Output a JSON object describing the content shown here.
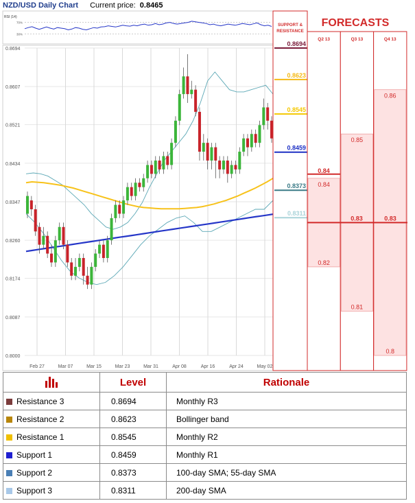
{
  "header": {
    "title": "NZD/USD Daily Chart",
    "price_label": "Current price:",
    "price_value": "0.8465"
  },
  "forecast_panel": {
    "support_resistance_label": [
      "SUPPORT &",
      "RESISTANCE"
    ],
    "title": "FORECASTS",
    "columns": [
      "Q2 13",
      "Q3 13",
      "Q4 13"
    ]
  },
  "colors": {
    "resistance_3": "#7b1c3a",
    "resistance_2": "#f5b915",
    "resistance_1": "#f5c800",
    "support_1": "#1c2fc4",
    "support_2": "#3a7a86",
    "support_3": "#a9d3d9",
    "sma100": "#f7c21a",
    "sma200": "#2536c8",
    "bollinger": "#5aa7b5",
    "bull": "#3cb53a",
    "bear": "#c8232a",
    "forecast_red": "#d22a2a",
    "forecast_fill": "#fde2e2"
  },
  "table": {
    "headers": {
      "icon": "bar-chart-icon",
      "level": "Level",
      "rationale": "Rationale"
    },
    "rows": [
      {
        "name": "Resistance 3",
        "level": "0.8694",
        "rationale": "Monthly R3",
        "color": "#7b3c3c"
      },
      {
        "name": "Resistance 2",
        "level": "0.8623",
        "rationale": "Bollinger band",
        "color": "#b8860b"
      },
      {
        "name": "Resistance 1",
        "level": "0.8545",
        "rationale": "Monthly R2",
        "color": "#f0c000"
      },
      {
        "name": "Support 1",
        "level": "0.8459",
        "rationale": "Monthly R1",
        "color": "#1f1fd0"
      },
      {
        "name": "Support 2",
        "level": "0.8373",
        "rationale": "100-day SMA; 55-day SMA",
        "color": "#4a7fb5"
      },
      {
        "name": "Support 3",
        "level": "0.8311",
        "rationale": "200-day SMA",
        "color": "#a8c8e8"
      }
    ]
  },
  "chart_data": {
    "type": "candlestick",
    "title": "NZD/USD Daily Chart",
    "ylim": [
      0.8,
      0.8694
    ],
    "y_ticks": [
      "0.8694",
      "0.8607",
      "0.8521",
      "0.8434",
      "0.8347",
      "0.8260",
      "0.8174",
      "0.8087",
      "0.8000"
    ],
    "x_ticks": [
      "Feb 27",
      "Mar 07",
      "Mar 15",
      "Mar 23",
      "Mar 31",
      "Apr 08",
      "Apr 16",
      "Apr 24",
      "May 02"
    ],
    "rsi": {
      "label": "RSI (14)",
      "levels": [
        "70%",
        "30%"
      ],
      "values": [
        48,
        52,
        55,
        50,
        46,
        50,
        54,
        50,
        47,
        52,
        50,
        48,
        44,
        47,
        52,
        50,
        46,
        44,
        48,
        52,
        50,
        54,
        55,
        58,
        56,
        54,
        57,
        60,
        58,
        57,
        60,
        58,
        62,
        64,
        60,
        62,
        66,
        62,
        64,
        68,
        70,
        66,
        64,
        66,
        68,
        70,
        74,
        72,
        70,
        68,
        66,
        62,
        64,
        60,
        58,
        61,
        64,
        62,
        60,
        63,
        66,
        64,
        62,
        65,
        68,
        62,
        58,
        60,
        56
      ]
    },
    "candles": [
      [
        0.832,
        0.836,
        0.831,
        0.837
      ],
      [
        0.835,
        0.833,
        0.8315,
        0.836
      ],
      [
        0.833,
        0.828,
        0.827,
        0.834
      ],
      [
        0.829,
        0.825,
        0.823,
        0.83
      ],
      [
        0.825,
        0.827,
        0.824,
        0.829
      ],
      [
        0.827,
        0.823,
        0.822,
        0.828
      ],
      [
        0.823,
        0.821,
        0.82,
        0.825
      ],
      [
        0.821,
        0.826,
        0.82,
        0.827
      ],
      [
        0.826,
        0.829,
        0.825,
        0.83
      ],
      [
        0.829,
        0.825,
        0.824,
        0.83
      ],
      [
        0.825,
        0.821,
        0.82,
        0.826
      ],
      [
        0.821,
        0.818,
        0.817,
        0.822
      ],
      [
        0.818,
        0.82,
        0.817,
        0.822
      ],
      [
        0.82,
        0.822,
        0.819,
        0.823
      ],
      [
        0.822,
        0.818,
        0.816,
        0.823
      ],
      [
        0.818,
        0.816,
        0.815,
        0.82
      ],
      [
        0.816,
        0.82,
        0.815,
        0.821
      ],
      [
        0.82,
        0.823,
        0.819,
        0.824
      ],
      [
        0.823,
        0.825,
        0.822,
        0.826
      ],
      [
        0.825,
        0.822,
        0.821,
        0.826
      ],
      [
        0.822,
        0.826,
        0.821,
        0.827
      ],
      [
        0.826,
        0.831,
        0.825,
        0.832
      ],
      [
        0.831,
        0.834,
        0.83,
        0.835
      ],
      [
        0.834,
        0.832,
        0.831,
        0.835
      ],
      [
        0.832,
        0.835,
        0.831,
        0.836
      ],
      [
        0.835,
        0.838,
        0.834,
        0.839
      ],
      [
        0.838,
        0.836,
        0.835,
        0.839
      ],
      [
        0.836,
        0.839,
        0.835,
        0.84
      ],
      [
        0.839,
        0.838,
        0.837,
        0.84
      ],
      [
        0.838,
        0.84,
        0.837,
        0.841
      ],
      [
        0.84,
        0.843,
        0.839,
        0.844
      ],
      [
        0.843,
        0.841,
        0.84,
        0.844
      ],
      [
        0.841,
        0.844,
        0.84,
        0.845
      ],
      [
        0.844,
        0.842,
        0.841,
        0.845
      ],
      [
        0.842,
        0.845,
        0.841,
        0.846
      ],
      [
        0.845,
        0.843,
        0.842,
        0.846
      ],
      [
        0.843,
        0.848,
        0.842,
        0.849
      ],
      [
        0.848,
        0.853,
        0.847,
        0.854
      ],
      [
        0.853,
        0.859,
        0.852,
        0.86
      ],
      [
        0.859,
        0.863,
        0.858,
        0.865
      ],
      [
        0.863,
        0.859,
        0.857,
        0.868
      ],
      [
        0.859,
        0.86,
        0.858,
        0.862
      ],
      [
        0.86,
        0.855,
        0.854,
        0.861
      ],
      [
        0.855,
        0.846,
        0.844,
        0.856
      ],
      [
        0.846,
        0.848,
        0.844,
        0.85
      ],
      [
        0.848,
        0.844,
        0.842,
        0.849
      ],
      [
        0.844,
        0.847,
        0.842,
        0.848
      ],
      [
        0.847,
        0.844,
        0.84,
        0.848
      ],
      [
        0.844,
        0.842,
        0.84,
        0.845
      ],
      [
        0.842,
        0.844,
        0.841,
        0.845
      ],
      [
        0.844,
        0.841,
        0.839,
        0.845
      ],
      [
        0.841,
        0.843,
        0.84,
        0.844
      ],
      [
        0.843,
        0.842,
        0.841,
        0.844
      ],
      [
        0.842,
        0.846,
        0.841,
        0.847
      ],
      [
        0.846,
        0.849,
        0.845,
        0.85
      ],
      [
        0.849,
        0.847,
        0.845,
        0.85
      ],
      [
        0.847,
        0.85,
        0.846,
        0.851
      ],
      [
        0.85,
        0.848,
        0.847,
        0.851
      ],
      [
        0.848,
        0.852,
        0.847,
        0.853
      ],
      [
        0.852,
        0.856,
        0.851,
        0.858
      ],
      [
        0.856,
        0.853,
        0.851,
        0.857
      ],
      [
        0.853,
        0.849,
        0.848,
        0.854
      ]
    ],
    "sma_100": [
      0.839,
      0.8392,
      0.8391,
      0.839,
      0.8388,
      0.8386,
      0.8384,
      0.8381,
      0.8378,
      0.8374,
      0.837,
      0.8366,
      0.8362,
      0.8358,
      0.8354,
      0.835,
      0.8346,
      0.8342,
      0.8339,
      0.8336,
      0.8334,
      0.8333,
      0.8332,
      0.8331,
      0.8331,
      0.8331,
      0.8331,
      0.8332,
      0.8333,
      0.8334,
      0.8336,
      0.8339,
      0.8342,
      0.8346,
      0.835,
      0.8355,
      0.836,
      0.8366,
      0.8372,
      0.8378,
      0.8385,
      0.8392,
      0.84
    ],
    "sma_200": [
      0.8235,
      0.8237,
      0.8239,
      0.8241,
      0.8243,
      0.8245,
      0.8247,
      0.8249,
      0.8251,
      0.8253,
      0.8255,
      0.8257,
      0.8259,
      0.8261,
      0.8263,
      0.8265,
      0.8267,
      0.8269,
      0.8271,
      0.8273,
      0.8275,
      0.8277,
      0.8279,
      0.8281,
      0.8283,
      0.8285,
      0.8287,
      0.8289,
      0.8291,
      0.8293,
      0.8295,
      0.8297,
      0.8299,
      0.8301,
      0.8303,
      0.8305,
      0.8307,
      0.8309,
      0.8311,
      0.8313,
      0.8315,
      0.8317,
      0.8319
    ],
    "bb_upper": [
      0.841,
      0.8412,
      0.841,
      0.8405,
      0.8395,
      0.8385,
      0.837,
      0.8355,
      0.834,
      0.832,
      0.8305,
      0.829,
      0.8285,
      0.829,
      0.83,
      0.832,
      0.8345,
      0.838,
      0.841,
      0.844,
      0.846,
      0.848,
      0.85,
      0.853,
      0.857,
      0.862,
      0.864,
      0.862,
      0.86,
      0.8595,
      0.8595,
      0.86,
      0.8605,
      0.861,
      0.859
    ],
    "bb_lower": [
      0.832,
      0.83,
      0.8275,
      0.8245,
      0.8215,
      0.819,
      0.8175,
      0.8165,
      0.816,
      0.8165,
      0.818,
      0.82,
      0.8225,
      0.825,
      0.827,
      0.8285,
      0.83,
      0.831,
      0.8315,
      0.83,
      0.828,
      0.828,
      0.829,
      0.83,
      0.831,
      0.832,
      0.833,
      0.833,
      0.835
    ],
    "sr_levels": [
      {
        "label": "0.8694",
        "value": 0.8694,
        "color": "#7b1c3a"
      },
      {
        "label": "0.8623",
        "value": 0.8623,
        "color": "#f5b915"
      },
      {
        "label": "0.8545",
        "value": 0.8545,
        "color": "#f5c800"
      },
      {
        "label": "0.8459",
        "value": 0.8459,
        "color": "#1c2fc4"
      },
      {
        "label": "0.8373",
        "value": 0.8373,
        "color": "#3a7a86"
      },
      {
        "label": "0.8311",
        "value": 0.8311,
        "color": "#a9d3d9"
      }
    ],
    "forecasts": [
      {
        "quarter": "Q2 13",
        "target": "0.84",
        "target_value": 0.84,
        "high": "0.84",
        "high_value": 0.84,
        "low": "0.82",
        "low_value": 0.82
      },
      {
        "quarter": "Q3 13",
        "target": "0.83",
        "target_value": 0.83,
        "high": "0.85",
        "high_value": 0.85,
        "low": "0.81",
        "low_value": 0.81
      },
      {
        "quarter": "Q4 13",
        "target": "0.83",
        "target_value": 0.83,
        "high": "0.86",
        "high_value": 0.86,
        "low": "0.8",
        "low_value": 0.8
      }
    ]
  }
}
